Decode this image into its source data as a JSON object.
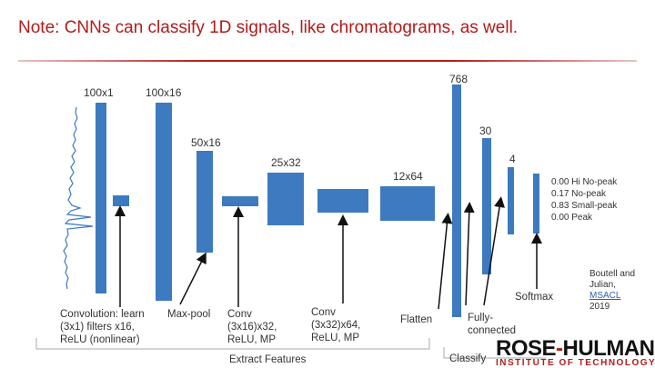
{
  "title": "Note: CNNs can classify 1D signals, like chromatograms, as well.",
  "layers": {
    "l1": "100x1",
    "l2": "100x16",
    "l3": "50x16",
    "l4": "25x32",
    "l5": "12x64",
    "l6": "768",
    "l7": "30",
    "l8": "4"
  },
  "captions": {
    "conv1_line1": "Convolution: learn",
    "conv1_line2": "(3x1) filters x16,",
    "conv1_line3": "ReLU (nonlinear)",
    "maxpool": "Max-pool",
    "conv2_line1": "Conv",
    "conv2_line2": "(3x16)x32,",
    "conv2_line3": "ReLU, MP",
    "conv3_line1": "Conv",
    "conv3_line2": "(3x32)x64,",
    "conv3_line3": "ReLU, MP",
    "flatten": "Flatten",
    "fc_line1": "Fully-",
    "fc_line2": "connected",
    "softmax": "Softmax",
    "extract": "Extract Features",
    "classify": "Classify"
  },
  "outputs": [
    "0.00 Hi No-peak",
    "0.17 No-peak",
    "0.83 Small-peak",
    "0.00 Peak"
  ],
  "citation": {
    "line1": "Boutell and",
    "line2": "Julian,",
    "link": "MSACL",
    "line3": "2019"
  },
  "logo": {
    "part1": "ROSE",
    "amp": "-",
    "part2": "HULMAN",
    "sub": "INSTITUTE OF TECHNOLOGY"
  }
}
